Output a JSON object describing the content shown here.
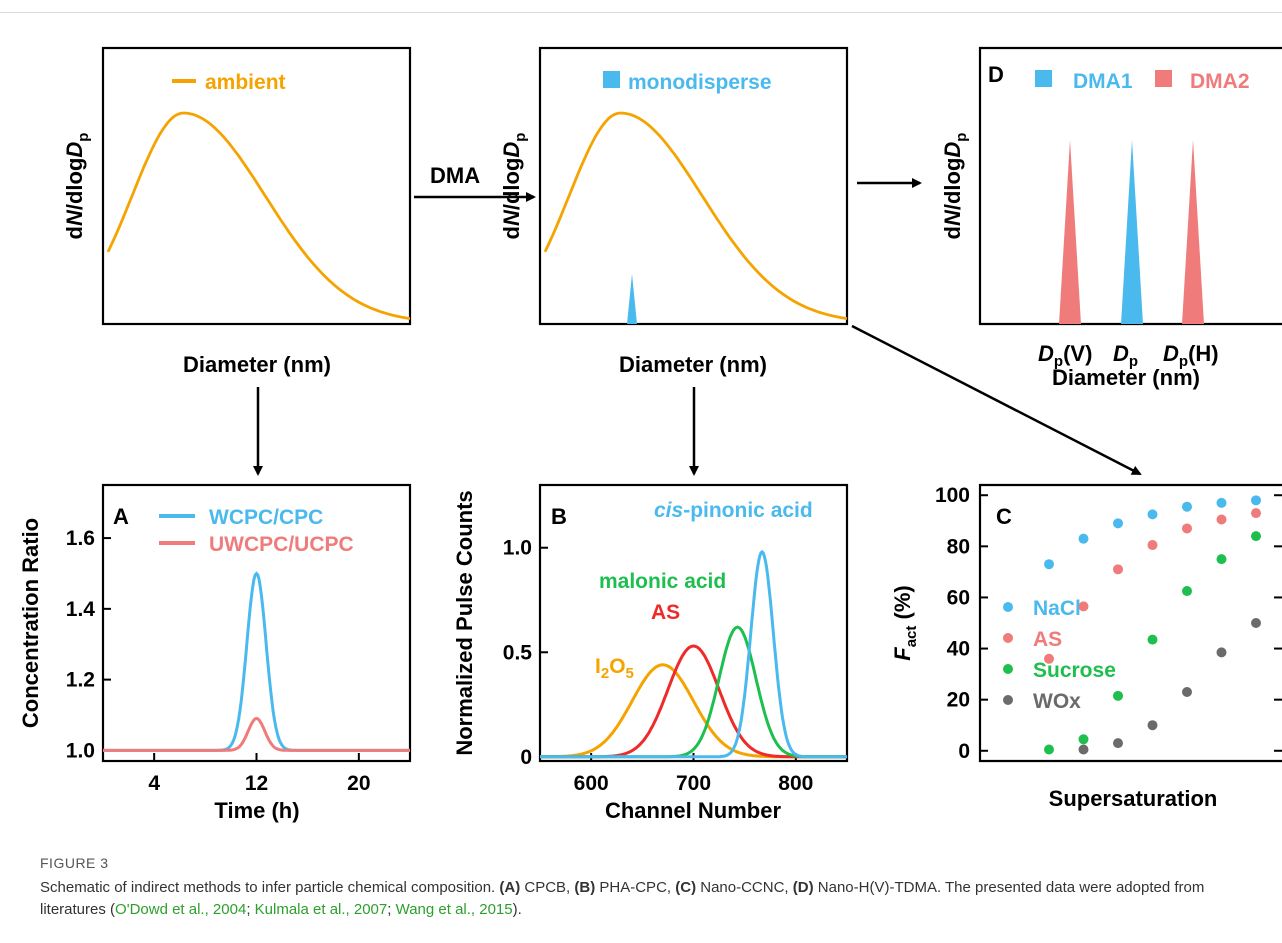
{
  "colors": {
    "orange": "#f5a300",
    "blue": "#4ab9ee",
    "pink": "#f07b7b",
    "red": "#ee2a2a",
    "green": "#1fbf4f",
    "gray": "#6b6b6b",
    "citation": "#2ca02c"
  },
  "flow": {
    "dma_label": "DMA"
  },
  "panel_top_left": {
    "legend": "ambient",
    "ylabel_prefix": "d",
    "ylabel_N": "N",
    "ylabel_mid": "/dlog",
    "ylabel_D": "D",
    "ylabel_sub": "p",
    "xlabel": "Diameter (nm)"
  },
  "panel_top_mid": {
    "legend": "monodisperse",
    "ylabel_prefix": "d",
    "ylabel_N": "N",
    "ylabel_mid": "/dlog",
    "ylabel_D": "D",
    "ylabel_sub": "p",
    "xlabel": "Diameter (nm)"
  },
  "panel_D": {
    "letter": "D",
    "legend_1": "DMA1",
    "legend_2": "DMA2",
    "ylabel_prefix": "d",
    "ylabel_N": "N",
    "ylabel_mid": "/dlog",
    "ylabel_D": "D",
    "ylabel_sub": "p",
    "tick_D": "D",
    "tick_sub": "p",
    "tick_v_suffix": "(V)",
    "tick_h_suffix": "(H)",
    "xlabel": "Diameter (nm)"
  },
  "chart_data": [
    {
      "panel": "A",
      "type": "line",
      "ylabel": "Concentration Ratio",
      "xlabel": "Time (h)",
      "xlim": [
        0,
        24
      ],
      "ylim": [
        0.97,
        1.75
      ],
      "xticks": [
        4,
        12,
        20
      ],
      "yticks": [
        1.0,
        1.2,
        1.4,
        1.6
      ],
      "ytick_labels": [
        "1.0",
        "1.2",
        "1.4",
        "1.6"
      ],
      "series": [
        {
          "name": "WCPC/CPC",
          "color": "#4ab9ee",
          "baseline": 1.0,
          "peak": 1.5,
          "center": 12,
          "width": 0.75
        },
        {
          "name": "UWCPC/UCPC",
          "color": "#f07b7b",
          "baseline": 1.0,
          "peak": 1.09,
          "center": 12,
          "width": 0.65
        }
      ]
    },
    {
      "panel": "B",
      "type": "line",
      "ylabel": "Normalized Pulse Counts",
      "xlabel": "Channel Number",
      "xlim": [
        550,
        850
      ],
      "ylim": [
        -0.02,
        1.3
      ],
      "xticks": [
        600,
        700,
        800
      ],
      "yticks": [
        0,
        0.5,
        1.0
      ],
      "ytick_labels": [
        "0",
        "0.5",
        "1.0"
      ],
      "series": [
        {
          "name": "I2O5",
          "color": "#f5a300",
          "center": 670,
          "peak": 0.44,
          "sigma": 30
        },
        {
          "name": "AS",
          "color": "#ee2a2a",
          "center": 700,
          "peak": 0.53,
          "sigma": 25
        },
        {
          "name": "malonic acid",
          "color": "#1fbf4f",
          "center": 743,
          "peak": 0.62,
          "sigma": 18
        },
        {
          "name": "cis-pinonic acid",
          "color": "#4ab9ee",
          "center": 767,
          "peak": 0.98,
          "sigma": 11
        }
      ]
    },
    {
      "panel": "C",
      "type": "scatter",
      "ylabel_main": "F",
      "ylabel_sub": "act",
      "ylabel_unit": " (%)",
      "xlabel": "Supersaturation",
      "ylim": [
        -4,
        104
      ],
      "yticks": [
        0,
        20,
        40,
        60,
        80,
        100
      ],
      "ytick_labels": [
        "0",
        "20",
        "40",
        "60",
        "80",
        "100"
      ],
      "x_positions": [
        1,
        2,
        3,
        4,
        5,
        6,
        7
      ],
      "series": [
        {
          "name": "NaCl",
          "color": "#4ab9ee",
          "values": [
            73,
            83,
            89,
            92.5,
            95.5,
            97,
            98
          ]
        },
        {
          "name": "AS",
          "color": "#f07b7b",
          "values": [
            36,
            56.5,
            71,
            80.5,
            87,
            90.5,
            93
          ]
        },
        {
          "name": "Sucrose",
          "color": "#1fbf4f",
          "values": [
            0.5,
            4.5,
            21.5,
            43.5,
            62.5,
            75,
            84
          ]
        },
        {
          "name": "WOx",
          "color": "#6b6b6b",
          "values": [
            0.5,
            3,
            10,
            23,
            38.5,
            50
          ]
        }
      ],
      "wox_x": [
        2,
        3,
        4,
        5,
        6,
        7
      ]
    }
  ],
  "caption": {
    "figure_label": "FIGURE 3",
    "line1": "Schematic of indirect methods to infer particle chemical composition.",
    "a_label": "(A)",
    "a_text": "CPCB,",
    "b_label": "(B)",
    "b_text": "PHA-CPC,",
    "c_label": "(C)",
    "c_text": "Nano-CCNC,",
    "d_label": "(D)",
    "d_text": "Nano-H(V)-TDMA. The presented data were adopted from literatures (",
    "cite1": "O'Dowd et al., 2004",
    "sep1": "; ",
    "cite2": "Kulmala et al., 2007",
    "sep2": "; ",
    "cite3": "Wang et al., 2015",
    "end": ")."
  }
}
